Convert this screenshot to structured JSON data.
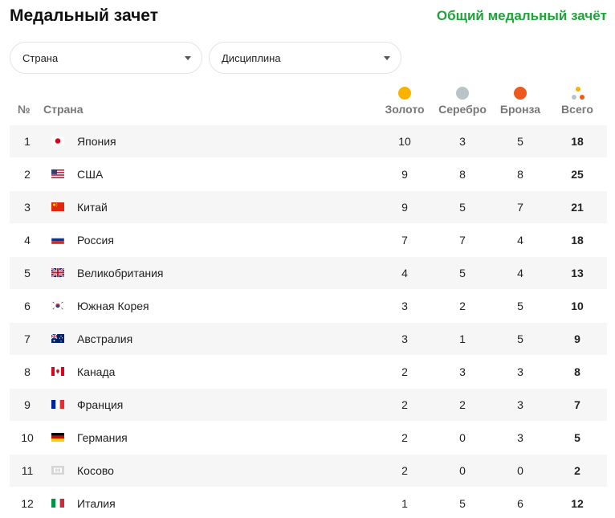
{
  "header": {
    "title": "Медальный зачет",
    "overall_link": "Общий медальный зачёт"
  },
  "filters": {
    "country": "Страна",
    "discipline": "Дисциплина"
  },
  "columns": {
    "num": "№",
    "country": "Страна",
    "gold": "Золото",
    "silver": "Серебро",
    "bronze": "Бронза",
    "total": "Всего"
  },
  "colors": {
    "gold": "#f9b200",
    "silver": "#b8c4c8",
    "bronze": "#ec5a1f",
    "accent": "#1fa33a"
  },
  "rows": [
    {
      "rank": "1",
      "flag": "japan-flag-icon",
      "country": "Япония",
      "gold": "10",
      "silver": "3",
      "bronze": "5",
      "total": "18"
    },
    {
      "rank": "2",
      "flag": "usa-flag-icon",
      "country": "США",
      "gold": "9",
      "silver": "8",
      "bronze": "8",
      "total": "25"
    },
    {
      "rank": "3",
      "flag": "china-flag-icon",
      "country": "Китай",
      "gold": "9",
      "silver": "5",
      "bronze": "7",
      "total": "21"
    },
    {
      "rank": "4",
      "flag": "russia-flag-icon",
      "country": "Россия",
      "gold": "7",
      "silver": "7",
      "bronze": "4",
      "total": "18"
    },
    {
      "rank": "5",
      "flag": "uk-flag-icon",
      "country": "Великобритания",
      "gold": "4",
      "silver": "5",
      "bronze": "4",
      "total": "13"
    },
    {
      "rank": "6",
      "flag": "south-korea-flag-icon",
      "country": "Южная Корея",
      "gold": "3",
      "silver": "2",
      "bronze": "5",
      "total": "10"
    },
    {
      "rank": "7",
      "flag": "australia-flag-icon",
      "country": "Австралия",
      "gold": "3",
      "silver": "1",
      "bronze": "5",
      "total": "9"
    },
    {
      "rank": "8",
      "flag": "canada-flag-icon",
      "country": "Канада",
      "gold": "2",
      "silver": "3",
      "bronze": "3",
      "total": "8"
    },
    {
      "rank": "9",
      "flag": "france-flag-icon",
      "country": "Франция",
      "gold": "2",
      "silver": "2",
      "bronze": "3",
      "total": "7"
    },
    {
      "rank": "10",
      "flag": "germany-flag-icon",
      "country": "Германия",
      "gold": "2",
      "silver": "0",
      "bronze": "3",
      "total": "5"
    },
    {
      "rank": "11",
      "flag": "kosovo-flag-icon",
      "country": "Косово",
      "gold": "2",
      "silver": "0",
      "bronze": "0",
      "total": "2"
    },
    {
      "rank": "12",
      "flag": "italy-flag-icon",
      "country": "Италия",
      "gold": "1",
      "silver": "5",
      "bronze": "6",
      "total": "12"
    }
  ]
}
